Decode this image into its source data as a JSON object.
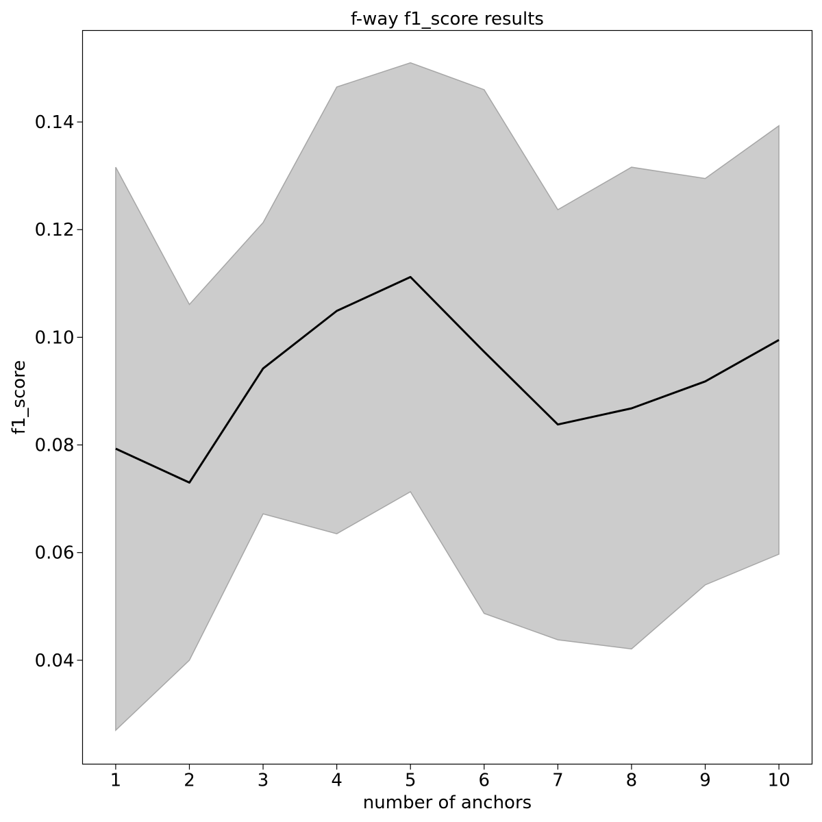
{
  "chart_data": {
    "type": "area",
    "title": "f-way f1_score results",
    "xlabel": "number of anchors",
    "ylabel": "f1_score",
    "x": [
      1,
      2,
      3,
      4,
      5,
      6,
      7,
      8,
      9,
      10
    ],
    "xticks": [
      "1",
      "2",
      "3",
      "4",
      "5",
      "6",
      "7",
      "8",
      "9",
      "10"
    ],
    "yticks": [
      "0.04",
      "0.06",
      "0.08",
      "0.10",
      "0.12",
      "0.14"
    ],
    "xlim": [
      0.55,
      10.45
    ],
    "ylim": [
      0.0207,
      0.157
    ],
    "grid": false,
    "series": [
      {
        "values": [
          0.0793,
          0.073,
          0.0942,
          0.1049,
          0.1112,
          0.0973,
          0.0838,
          0.0868,
          0.0918,
          0.0995
        ],
        "upper": [
          0.1316,
          0.1061,
          0.1213,
          0.1465,
          0.151,
          0.146,
          0.1237,
          0.1316,
          0.1295,
          0.1393
        ],
        "lower": [
          0.027,
          0.04,
          0.0672,
          0.0635,
          0.0713,
          0.0487,
          0.0438,
          0.0421,
          0.054,
          0.0597
        ],
        "line_color": "#000000",
        "band_color": "#cccccc",
        "band_edge_color": "#a6a6a6"
      }
    ]
  }
}
